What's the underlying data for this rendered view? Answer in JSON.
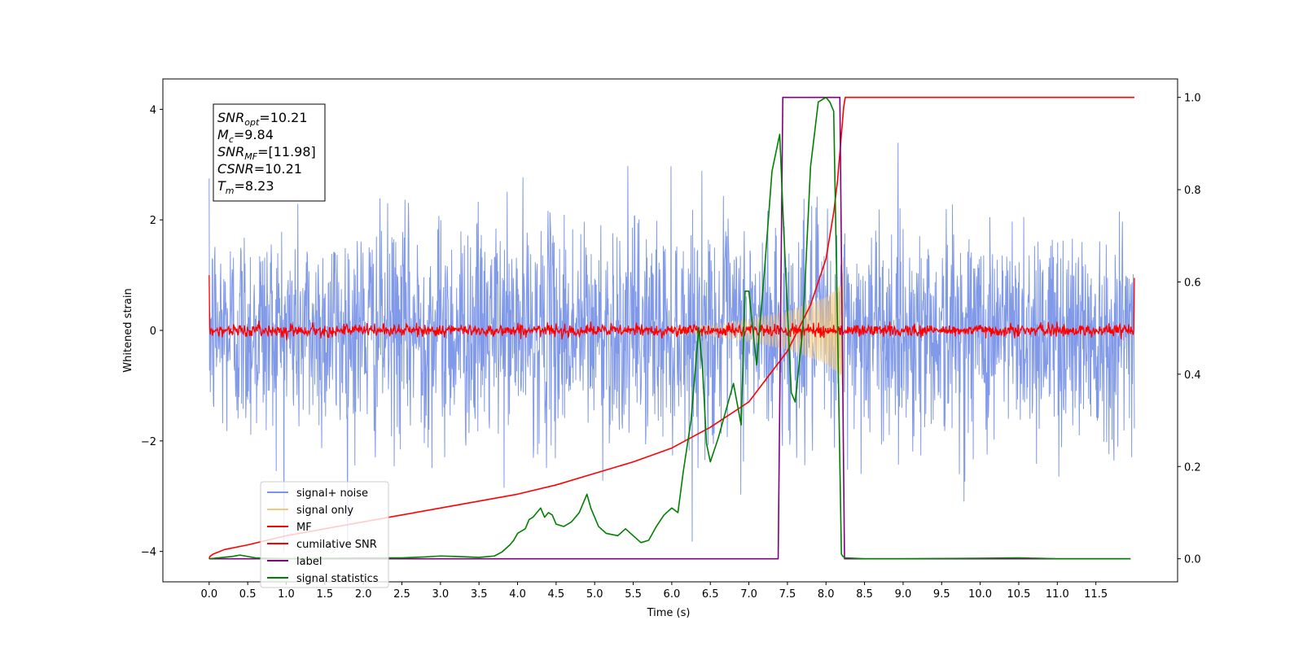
{
  "chart_data": {
    "type": "line",
    "xlabel": "Time (s)",
    "ylabel": "Whitened strain",
    "xlim": [
      -0.6,
      12.56
    ],
    "ylim_left": [
      -4.55,
      4.55
    ],
    "ylim_right": [
      -0.05,
      1.04
    ],
    "x_ticks": [
      "0.0",
      "0.5",
      "1.0",
      "1.5",
      "2.0",
      "2.5",
      "3.0",
      "3.5",
      "4.0",
      "4.5",
      "5.0",
      "5.5",
      "6.0",
      "6.5",
      "7.0",
      "7.5",
      "8.0",
      "8.5",
      "9.0",
      "9.5",
      "10.0",
      "10.5",
      "11.0",
      "11.5"
    ],
    "y_ticks_left": [
      "4",
      "2",
      "0",
      "−2",
      "−4"
    ],
    "y_ticks_right": [
      "1.0",
      "0.8",
      "0.6",
      "0.4",
      "0.2",
      "0.0"
    ],
    "grid": false,
    "legend_position": "lower-left",
    "legend": [
      {
        "label": "signal+ noise",
        "color": "#7a94e8"
      },
      {
        "label": "signal only",
        "color": "#f5c97a"
      },
      {
        "label": "MF",
        "color": "#ff0000"
      },
      {
        "label": "cumilative SNR",
        "color": "#ff0000"
      },
      {
        "label": "label",
        "color": "#800080"
      },
      {
        "label": "signal statistics",
        "color": "#008000"
      }
    ],
    "annotation": {
      "lines": [
        {
          "base": "SNR",
          "sub": "opt",
          "value": "=10.21"
        },
        {
          "base": "M",
          "sub": "c",
          "value": "=9.84"
        },
        {
          "base": "SNR",
          "sub": "MF",
          "value": "=[11.98]"
        },
        {
          "base": "CSNR",
          "sub": "",
          "value": "=10.21"
        },
        {
          "base": "T",
          "sub": "m",
          "value": "=8.23"
        }
      ]
    },
    "series": [
      {
        "name": "signal+ noise",
        "axis": "left",
        "style": "noise",
        "x_range": [
          0.0,
          12.0
        ],
        "amplitude_typical": 2.2,
        "amplitude_peak": 4.0
      },
      {
        "name": "signal only",
        "axis": "left",
        "style": "chirp",
        "x_range": [
          6.0,
          8.23
        ],
        "envelope": [
          [
            6.0,
            0.04
          ],
          [
            6.5,
            0.1
          ],
          [
            7.0,
            0.2
          ],
          [
            7.5,
            0.35
          ],
          [
            8.0,
            0.6
          ],
          [
            8.2,
            0.85
          ],
          [
            8.23,
            1.5
          ]
        ]
      },
      {
        "name": "MF",
        "axis": "left",
        "style": "noise",
        "x_range": [
          0.0,
          12.0
        ],
        "amplitude_typical": 0.1,
        "amplitude_peak": 0.27,
        "edges": [
          [
            0.0,
            1.0
          ],
          [
            12.0,
            0.95
          ]
        ]
      },
      {
        "name": "cumilative SNR",
        "axis": "right",
        "x": [
          0.0,
          0.01,
          0.05,
          0.2,
          0.5,
          1.0,
          1.5,
          2.0,
          2.5,
          3.0,
          3.5,
          4.0,
          4.5,
          5.0,
          5.5,
          6.0,
          6.5,
          7.0,
          7.5,
          7.8,
          8.0,
          8.1,
          8.15,
          8.2,
          8.23,
          8.25,
          12.0
        ],
        "y": [
          0.0,
          0.005,
          0.01,
          0.02,
          0.03,
          0.05,
          0.065,
          0.08,
          0.095,
          0.11,
          0.125,
          0.14,
          0.16,
          0.185,
          0.21,
          0.24,
          0.285,
          0.34,
          0.45,
          0.55,
          0.65,
          0.75,
          0.82,
          0.92,
          0.98,
          1.0,
          1.0
        ]
      },
      {
        "name": "label",
        "axis": "right",
        "x": [
          0.0,
          7.38,
          7.44,
          8.18,
          8.24,
          11.95
        ],
        "y": [
          0.0,
          0.0,
          1.0,
          1.0,
          0.0,
          0.0
        ]
      },
      {
        "name": "signal statistics",
        "axis": "right",
        "x": [
          0.0,
          0.3,
          0.4,
          0.6,
          1.0,
          1.5,
          2.0,
          2.5,
          2.8,
          3.0,
          3.2,
          3.5,
          3.7,
          3.8,
          3.9,
          3.95,
          4.0,
          4.1,
          4.15,
          4.2,
          4.3,
          4.35,
          4.4,
          4.45,
          4.5,
          4.6,
          4.7,
          4.8,
          4.9,
          4.95,
          5.05,
          5.15,
          5.3,
          5.4,
          5.5,
          5.6,
          5.7,
          5.8,
          5.9,
          6.0,
          6.08,
          6.15,
          6.25,
          6.35,
          6.4,
          6.45,
          6.5,
          6.6,
          6.7,
          6.8,
          6.9,
          6.95,
          7.0,
          7.1,
          7.2,
          7.3,
          7.4,
          7.45,
          7.55,
          7.6,
          7.7,
          7.8,
          7.9,
          8.0,
          8.05,
          8.1,
          8.15,
          8.2,
          8.22,
          8.25,
          8.5,
          9.0,
          10.0,
          10.5,
          11.0,
          11.95
        ],
        "y": [
          0.0,
          0.005,
          0.008,
          0.002,
          0.0,
          0.001,
          0.002,
          0.002,
          0.004,
          0.006,
          0.005,
          0.003,
          0.006,
          0.015,
          0.03,
          0.04,
          0.055,
          0.065,
          0.085,
          0.09,
          0.11,
          0.09,
          0.1,
          0.095,
          0.075,
          0.07,
          0.08,
          0.1,
          0.14,
          0.11,
          0.07,
          0.055,
          0.05,
          0.065,
          0.05,
          0.035,
          0.04,
          0.07,
          0.095,
          0.11,
          0.1,
          0.19,
          0.3,
          0.5,
          0.41,
          0.25,
          0.21,
          0.26,
          0.32,
          0.38,
          0.29,
          0.58,
          0.58,
          0.42,
          0.62,
          0.84,
          0.92,
          0.72,
          0.36,
          0.34,
          0.5,
          0.85,
          0.99,
          1.0,
          0.99,
          0.97,
          0.5,
          0.01,
          0.005,
          0.002,
          0.0,
          0.0,
          0.001,
          0.002,
          0.0,
          0.0
        ]
      }
    ]
  }
}
